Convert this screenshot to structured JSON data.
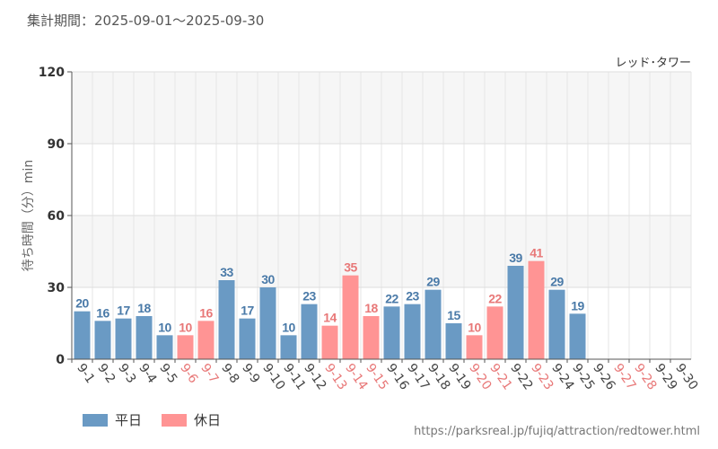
{
  "period_label": "集計期間：2025-09-01〜2025-09-30",
  "source_url": "https://parksreal.jp/fujiq/attraction/redtower.html",
  "colors": {
    "weekday": "#6a9ac4",
    "weekday_text": "#4a7aa8",
    "holiday": "#ff9494",
    "holiday_text": "#e87878",
    "grid": "#dddddd",
    "band": "#f6f6f6",
    "axis": "#555555"
  },
  "chart_data": {
    "type": "bar",
    "title": "レッド･タワー",
    "ylabel": "待ち時間（分）min",
    "xlabel": "",
    "ylim": [
      0,
      120
    ],
    "yticks": [
      0,
      30,
      60,
      90,
      120
    ],
    "grid": true,
    "legend_position": "bottom-left",
    "legend": [
      {
        "label": "平日",
        "key": "weekday"
      },
      {
        "label": "休日",
        "key": "holiday"
      }
    ],
    "categories": [
      "9-1",
      "9-2",
      "9-3",
      "9-4",
      "9-5",
      "9-6",
      "9-7",
      "9-8",
      "9-9",
      "9-10",
      "9-11",
      "9-12",
      "9-13",
      "9-14",
      "9-15",
      "9-16",
      "9-17",
      "9-18",
      "9-19",
      "9-20",
      "9-21",
      "9-22",
      "9-23",
      "9-24",
      "9-25",
      "9-26",
      "9-27",
      "9-28",
      "9-29",
      "9-30"
    ],
    "values": [
      20,
      16,
      17,
      18,
      10,
      10,
      16,
      33,
      17,
      30,
      10,
      23,
      14,
      35,
      18,
      22,
      23,
      29,
      15,
      10,
      22,
      39,
      41,
      29,
      19,
      null,
      null,
      null,
      null,
      null
    ],
    "day_type": [
      "weekday",
      "weekday",
      "weekday",
      "weekday",
      "weekday",
      "holiday",
      "holiday",
      "weekday",
      "weekday",
      "weekday",
      "weekday",
      "weekday",
      "holiday",
      "holiday",
      "holiday",
      "weekday",
      "weekday",
      "weekday",
      "weekday",
      "holiday",
      "holiday",
      "weekday",
      "holiday",
      "weekday",
      "weekday",
      "weekday",
      "holiday",
      "holiday",
      "weekday",
      "weekday"
    ]
  }
}
